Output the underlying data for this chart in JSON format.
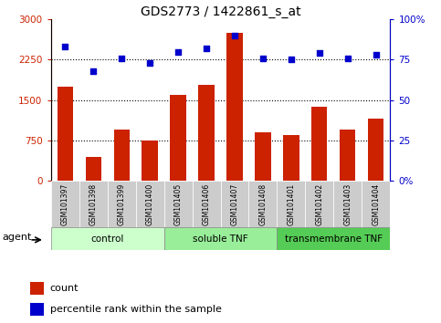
{
  "title": "GDS2773 / 1422861_s_at",
  "samples": [
    "GSM101397",
    "GSM101398",
    "GSM101399",
    "GSM101400",
    "GSM101405",
    "GSM101406",
    "GSM101407",
    "GSM101408",
    "GSM101401",
    "GSM101402",
    "GSM101403",
    "GSM101404"
  ],
  "counts": [
    1750,
    450,
    950,
    750,
    1600,
    1780,
    2750,
    900,
    850,
    1380,
    950,
    1150
  ],
  "percentiles": [
    83,
    68,
    76,
    73,
    80,
    82,
    90,
    76,
    75,
    79,
    76,
    78
  ],
  "bar_color": "#cc2200",
  "dot_color": "#0000cc",
  "ylim_left": [
    0,
    3000
  ],
  "ylim_right": [
    0,
    100
  ],
  "yticks_left": [
    0,
    750,
    1500,
    2250,
    3000
  ],
  "yticks_right": [
    0,
    25,
    50,
    75,
    100
  ],
  "ytick_labels_left": [
    "0",
    "750",
    "1500",
    "2250",
    "3000"
  ],
  "ytick_labels_right": [
    "0%",
    "25",
    "50",
    "75",
    "100%"
  ],
  "groups": [
    {
      "label": "control",
      "start": 0,
      "end": 4,
      "color": "#ccffcc"
    },
    {
      "label": "soluble TNF",
      "start": 4,
      "end": 8,
      "color": "#99ee99"
    },
    {
      "label": "transmembrane TNF",
      "start": 8,
      "end": 12,
      "color": "#55cc55"
    }
  ],
  "agent_label": "agent",
  "legend_count_label": "count",
  "legend_pct_label": "percentile rank within the sample",
  "grid_yticks": [
    750,
    1500,
    2250
  ],
  "xtick_bg": "#cccccc",
  "title_fontsize": 10,
  "tick_fontsize": 7.5,
  "label_fontsize": 8
}
